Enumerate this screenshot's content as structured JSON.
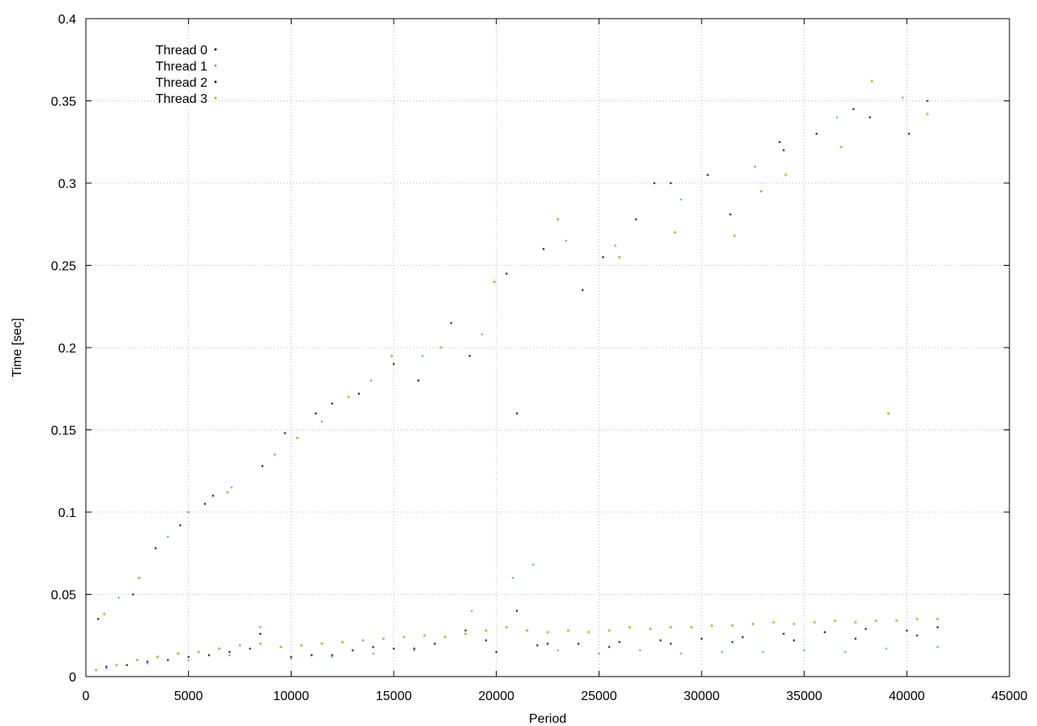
{
  "chart_data": {
    "type": "scatter",
    "title": "",
    "xlabel": "Period",
    "ylabel": "Time [sec]",
    "xlim": [
      0,
      45000
    ],
    "ylim": [
      0,
      0.4
    ],
    "x_ticks": [
      "0",
      "5000",
      "10000",
      "15000",
      "20000",
      "25000",
      "30000",
      "35000",
      "40000",
      "45000"
    ],
    "y_ticks": [
      "0",
      "0.05",
      "0.1",
      "0.15",
      "0.2",
      "0.25",
      "0.3",
      "0.35",
      "0.4"
    ],
    "grid": true,
    "legend_position": "top-left",
    "series": [
      {
        "name": "Thread 0",
        "color": "#1a1a1a",
        "points": [
          [
            1000,
            0.006
          ],
          [
            3000,
            0.009
          ],
          [
            5000,
            0.012
          ],
          [
            7000,
            0.015
          ],
          [
            8500,
            0.026
          ],
          [
            10000,
            0.012
          ],
          [
            12000,
            0.013
          ],
          [
            14000,
            0.018
          ],
          [
            16000,
            0.017
          ],
          [
            18500,
            0.028
          ],
          [
            20000,
            0.015
          ],
          [
            21000,
            0.04
          ],
          [
            22000,
            0.019
          ],
          [
            24000,
            0.02
          ],
          [
            26000,
            0.021
          ],
          [
            28000,
            0.022
          ],
          [
            30000,
            0.023
          ],
          [
            32000,
            0.024
          ],
          [
            34000,
            0.026
          ],
          [
            36000,
            0.027
          ],
          [
            38000,
            0.029
          ],
          [
            40000,
            0.028
          ],
          [
            41500,
            0.03
          ],
          [
            2300,
            0.05
          ],
          [
            4600,
            0.092
          ],
          [
            6200,
            0.11
          ],
          [
            9700,
            0.148
          ],
          [
            12000,
            0.166
          ],
          [
            15000,
            0.19
          ],
          [
            17800,
            0.215
          ],
          [
            21000,
            0.16
          ],
          [
            22300,
            0.26
          ],
          [
            24200,
            0.235
          ],
          [
            26800,
            0.278
          ],
          [
            28500,
            0.3
          ],
          [
            31400,
            0.281
          ],
          [
            33800,
            0.325
          ],
          [
            35600,
            0.33
          ],
          [
            38200,
            0.34
          ],
          [
            41000,
            0.35
          ]
        ]
      },
      {
        "name": "Thread 1",
        "color": "#5aa7dd",
        "points": [
          [
            1000,
            0.005
          ],
          [
            3000,
            0.008
          ],
          [
            5000,
            0.01
          ],
          [
            7000,
            0.013
          ],
          [
            8500,
            0.03
          ],
          [
            10000,
            0.011
          ],
          [
            12000,
            0.012
          ],
          [
            14000,
            0.014
          ],
          [
            16000,
            0.016
          ],
          [
            18800,
            0.04
          ],
          [
            20800,
            0.06
          ],
          [
            21800,
            0.068
          ],
          [
            23000,
            0.016
          ],
          [
            25000,
            0.014
          ],
          [
            27000,
            0.016
          ],
          [
            29000,
            0.014
          ],
          [
            31000,
            0.015
          ],
          [
            33000,
            0.015
          ],
          [
            35000,
            0.016
          ],
          [
            37000,
            0.015
          ],
          [
            39000,
            0.017
          ],
          [
            41500,
            0.018
          ],
          [
            1600,
            0.048
          ],
          [
            4000,
            0.085
          ],
          [
            7100,
            0.115
          ],
          [
            9200,
            0.135
          ],
          [
            11500,
            0.155
          ],
          [
            13900,
            0.18
          ],
          [
            16400,
            0.195
          ],
          [
            19300,
            0.208
          ],
          [
            23400,
            0.265
          ],
          [
            25800,
            0.262
          ],
          [
            29000,
            0.29
          ],
          [
            32600,
            0.31
          ],
          [
            36600,
            0.34
          ],
          [
            39800,
            0.352
          ]
        ]
      },
      {
        "name": "Thread 2",
        "color": "#1a1a1a",
        "points": [
          [
            2000,
            0.007
          ],
          [
            4000,
            0.01
          ],
          [
            6000,
            0.013
          ],
          [
            8000,
            0.017
          ],
          [
            11000,
            0.013
          ],
          [
            13000,
            0.016
          ],
          [
            15000,
            0.017
          ],
          [
            17000,
            0.02
          ],
          [
            19500,
            0.022
          ],
          [
            22500,
            0.02
          ],
          [
            25500,
            0.018
          ],
          [
            28500,
            0.02
          ],
          [
            31500,
            0.021
          ],
          [
            34500,
            0.022
          ],
          [
            37500,
            0.023
          ],
          [
            40500,
            0.025
          ],
          [
            600,
            0.035
          ],
          [
            3400,
            0.078
          ],
          [
            5800,
            0.105
          ],
          [
            8600,
            0.128
          ],
          [
            11200,
            0.16
          ],
          [
            13300,
            0.172
          ],
          [
            16200,
            0.18
          ],
          [
            18700,
            0.195
          ],
          [
            20500,
            0.245
          ],
          [
            25200,
            0.255
          ],
          [
            27700,
            0.3
          ],
          [
            30300,
            0.305
          ],
          [
            34000,
            0.32
          ],
          [
            37400,
            0.345
          ],
          [
            40100,
            0.33
          ]
        ]
      },
      {
        "name": "Thread 3",
        "color": "#e0a010",
        "points": [
          [
            500,
            0.004
          ],
          [
            1500,
            0.007
          ],
          [
            2500,
            0.01
          ],
          [
            3500,
            0.012
          ],
          [
            4500,
            0.014
          ],
          [
            5500,
            0.015
          ],
          [
            6500,
            0.017
          ],
          [
            7500,
            0.019
          ],
          [
            8500,
            0.02
          ],
          [
            9500,
            0.018
          ],
          [
            10500,
            0.019
          ],
          [
            11500,
            0.02
          ],
          [
            12500,
            0.021
          ],
          [
            13500,
            0.022
          ],
          [
            14500,
            0.023
          ],
          [
            15500,
            0.024
          ],
          [
            16500,
            0.025
          ],
          [
            17500,
            0.024
          ],
          [
            18500,
            0.026
          ],
          [
            19500,
            0.028
          ],
          [
            20500,
            0.03
          ],
          [
            21500,
            0.028
          ],
          [
            22500,
            0.027
          ],
          [
            23500,
            0.028
          ],
          [
            24500,
            0.027
          ],
          [
            25500,
            0.028
          ],
          [
            26500,
            0.03
          ],
          [
            27500,
            0.029
          ],
          [
            28500,
            0.03
          ],
          [
            29500,
            0.03
          ],
          [
            30500,
            0.031
          ],
          [
            31500,
            0.031
          ],
          [
            32500,
            0.032
          ],
          [
            33500,
            0.033
          ],
          [
            34500,
            0.032
          ],
          [
            35500,
            0.033
          ],
          [
            36500,
            0.034
          ],
          [
            37500,
            0.033
          ],
          [
            38500,
            0.034
          ],
          [
            39500,
            0.034
          ],
          [
            40500,
            0.035
          ],
          [
            41500,
            0.035
          ],
          [
            900,
            0.038
          ],
          [
            2600,
            0.06
          ],
          [
            5000,
            0.1
          ],
          [
            6900,
            0.112
          ],
          [
            10300,
            0.145
          ],
          [
            12800,
            0.17
          ],
          [
            14900,
            0.195
          ],
          [
            17300,
            0.2
          ],
          [
            19900,
            0.24
          ],
          [
            23000,
            0.278
          ],
          [
            26000,
            0.255
          ],
          [
            28700,
            0.27
          ],
          [
            31600,
            0.268
          ],
          [
            32900,
            0.295
          ],
          [
            34100,
            0.305
          ],
          [
            36800,
            0.322
          ],
          [
            38300,
            0.362
          ],
          [
            39100,
            0.16
          ],
          [
            41000,
            0.342
          ]
        ]
      }
    ]
  }
}
